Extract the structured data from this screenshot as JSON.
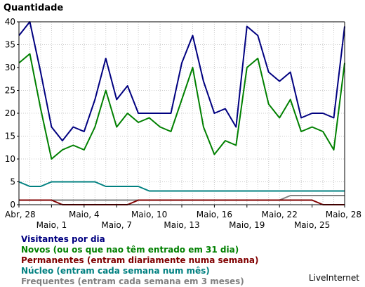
{
  "chart_data": {
    "type": "line",
    "ylabel": "Quantidade",
    "ylim": [
      0,
      40
    ],
    "yticks": [
      0,
      5,
      10,
      15,
      20,
      25,
      30,
      35,
      40
    ],
    "grid": true,
    "x": [
      "Abr, 28",
      "Abr, 29",
      "Abr, 30",
      "Maio, 1",
      "Maio, 2",
      "Maio, 3",
      "Maio, 4",
      "Maio, 5",
      "Maio, 6",
      "Maio, 7",
      "Maio, 8",
      "Maio, 9",
      "Maio, 10",
      "Maio, 11",
      "Maio, 12",
      "Maio, 13",
      "Maio, 14",
      "Maio, 15",
      "Maio, 16",
      "Maio, 17",
      "Maio, 18",
      "Maio, 19",
      "Maio, 20",
      "Maio, 21",
      "Maio, 22",
      "Maio, 23",
      "Maio, 24",
      "Maio, 25",
      "Maio, 26",
      "Maio, 27",
      "Maio, 28"
    ],
    "xticks_row1": [
      {
        "index": 0,
        "label": "Abr, 28"
      },
      {
        "index": 6,
        "label": "Maio, 4"
      },
      {
        "index": 12,
        "label": "Maio, 10"
      },
      {
        "index": 18,
        "label": "Maio, 16"
      },
      {
        "index": 24,
        "label": "Maio, 22"
      },
      {
        "index": 30,
        "label": "Maio, 28"
      }
    ],
    "xticks_row2": [
      {
        "index": 3,
        "label": "Maio, 1"
      },
      {
        "index": 9,
        "label": "Maio, 7"
      },
      {
        "index": 15,
        "label": "Maio, 13"
      },
      {
        "index": 21,
        "label": "Maio, 19"
      },
      {
        "index": 27,
        "label": "Maio, 25"
      }
    ],
    "series": [
      {
        "name": "Visitantes por dia",
        "color": "#000080",
        "values": [
          37,
          40,
          29,
          17,
          14,
          17,
          16,
          23,
          32,
          23,
          26,
          20,
          20,
          20,
          20,
          31,
          37,
          27,
          20,
          21,
          17,
          39,
          37,
          29,
          27,
          29,
          19,
          20,
          20,
          19,
          39
        ]
      },
      {
        "name": "Novos (ou os que nao têm entrado em 31 dia)",
        "color": "#008000",
        "values": [
          31,
          33,
          21,
          10,
          12,
          13,
          12,
          17,
          25,
          17,
          20,
          18,
          19,
          17,
          16,
          23,
          30,
          17,
          11,
          14,
          13,
          30,
          32,
          22,
          19,
          23,
          16,
          17,
          16,
          12,
          31
        ]
      },
      {
        "name": "Permanentes (entram diariamente numa semana)",
        "color": "#800000",
        "values": [
          1,
          1,
          1,
          1,
          0,
          0,
          0,
          0,
          0,
          0,
          0,
          1,
          1,
          1,
          1,
          1,
          1,
          1,
          1,
          1,
          1,
          1,
          1,
          1,
          1,
          1,
          1,
          1,
          0,
          0,
          0
        ]
      },
      {
        "name": "Núcleo (entram cada semana num mês)",
        "color": "#008080",
        "values": [
          5,
          4,
          4,
          5,
          5,
          5,
          5,
          5,
          4,
          4,
          4,
          4,
          3,
          3,
          3,
          3,
          3,
          3,
          3,
          3,
          3,
          3,
          3,
          3,
          3,
          3,
          3,
          3,
          3,
          3,
          3
        ]
      },
      {
        "name": "Frequentes (entram cada semana em 3 meses)",
        "color": "#808080",
        "values": [
          1,
          1,
          1,
          1,
          1,
          1,
          1,
          1,
          1,
          1,
          1,
          1,
          1,
          1,
          1,
          1,
          1,
          1,
          1,
          1,
          1,
          1,
          1,
          1,
          1,
          2,
          2,
          2,
          2,
          2,
          2
        ]
      }
    ]
  },
  "brand": "LiveInternet"
}
